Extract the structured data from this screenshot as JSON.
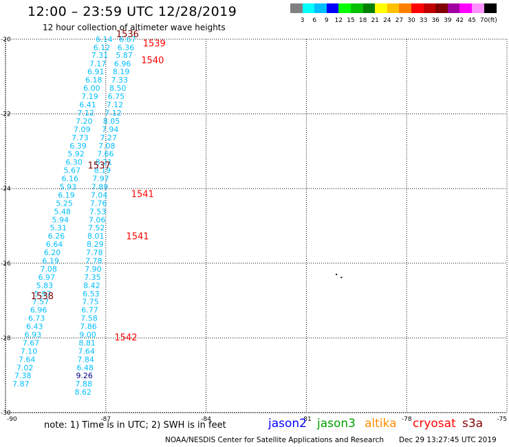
{
  "header": {
    "title": "12:00  –  23:59  UTC  12/28/2019",
    "subtitle": "12 hour collection of altimeter wave heights"
  },
  "colorbar": {
    "unit": "(ft)",
    "bins": [
      {
        "label": "3",
        "color": "#808080"
      },
      {
        "label": "6",
        "color": "#00ffff"
      },
      {
        "label": "9",
        "color": "#00bfff"
      },
      {
        "label": "12",
        "color": "#0000ff"
      },
      {
        "label": "15",
        "color": "#00ff00"
      },
      {
        "label": "18",
        "color": "#00c000"
      },
      {
        "label": "21",
        "color": "#008000"
      },
      {
        "label": "24",
        "color": "#ffff00"
      },
      {
        "label": "27",
        "color": "#ffc000"
      },
      {
        "label": "30",
        "color": "#ff8000"
      },
      {
        "label": "33",
        "color": "#ff0000"
      },
      {
        "label": "36",
        "color": "#c00000"
      },
      {
        "label": "39",
        "color": "#800000"
      },
      {
        "label": "42",
        "color": "#a000a0"
      },
      {
        "label": "45",
        "color": "#ff00ff"
      },
      {
        "label": "70",
        "color": "#ff90ff"
      },
      {
        "label": "",
        "color": "#000000"
      }
    ]
  },
  "footer": {
    "note": "note:  1) Time is in UTC;  2) SWH is in feet",
    "legend": [
      {
        "name": "jason2",
        "color": "#0000ff"
      },
      {
        "name": "jason3",
        "color": "#00a000"
      },
      {
        "name": "altika",
        "color": "#ff8c00"
      },
      {
        "name": "cryosat",
        "color": "#ff0000"
      },
      {
        "name": "s3a",
        "color": "#800000"
      }
    ],
    "credit": "NOAA/NESDIS Center for Satellite Applications and Research",
    "timestamp": "Dec 29 13:27:45 UTC 2019"
  },
  "chart_data": {
    "type": "scatter",
    "xlim": [
      -90,
      -75
    ],
    "ylim": [
      -30,
      -20
    ],
    "x_ticks": [
      -90,
      -87,
      -84,
      -81,
      -78,
      -75
    ],
    "x_tick_labels": [
      "-90",
      "-87",
      "-84",
      "-81",
      "-78",
      "-75"
    ],
    "y_ticks": [
      -20,
      -22,
      -24,
      -26,
      -28,
      -30
    ],
    "y_tick_labels": [
      "-20",
      "-22",
      "-24",
      "-26",
      "-28",
      "-30"
    ],
    "grid": true,
    "label_color": "#00bfff",
    "series": [
      {
        "points": [
          {
            "x": -87.05,
            "y": -20.0,
            "v": "6.14"
          },
          {
            "x": -87.12,
            "y": -20.22,
            "v": "6.12"
          },
          {
            "x": -87.18,
            "y": -20.42,
            "v": "7.31"
          },
          {
            "x": -87.24,
            "y": -20.65,
            "v": "7.17"
          },
          {
            "x": -87.3,
            "y": -20.87,
            "v": "6.91"
          },
          {
            "x": -87.36,
            "y": -21.09,
            "v": "6.18"
          },
          {
            "x": -87.42,
            "y": -21.31,
            "v": "6.00"
          },
          {
            "x": -87.48,
            "y": -21.53,
            "v": "7.19"
          },
          {
            "x": -87.54,
            "y": -21.75,
            "v": "6.41"
          },
          {
            "x": -87.6,
            "y": -21.97,
            "v": "7.12"
          },
          {
            "x": -87.65,
            "y": -22.19,
            "v": "7.20"
          },
          {
            "x": -87.71,
            "y": -22.41,
            "v": "7.09"
          },
          {
            "x": -87.77,
            "y": -22.63,
            "v": "7.73"
          },
          {
            "x": -87.83,
            "y": -22.85,
            "v": "6.39"
          },
          {
            "x": -87.89,
            "y": -23.07,
            "v": "5.92"
          },
          {
            "x": -87.95,
            "y": -23.29,
            "v": "6.30"
          },
          {
            "x": -88.01,
            "y": -23.51,
            "v": "5.67"
          },
          {
            "x": -88.07,
            "y": -23.73,
            "v": "6.16"
          },
          {
            "x": -88.13,
            "y": -23.95,
            "v": "5.93"
          },
          {
            "x": -88.18,
            "y": -24.17,
            "v": "6.19"
          },
          {
            "x": -88.24,
            "y": -24.39,
            "v": "5.25"
          },
          {
            "x": -88.3,
            "y": -24.61,
            "v": "5.48"
          },
          {
            "x": -88.36,
            "y": -24.83,
            "v": "5.94"
          },
          {
            "x": -88.42,
            "y": -25.05,
            "v": "5.31"
          },
          {
            "x": -88.48,
            "y": -25.27,
            "v": "6.26"
          },
          {
            "x": -88.54,
            "y": -25.49,
            "v": "6.64"
          },
          {
            "x": -88.6,
            "y": -25.71,
            "v": "6.20"
          },
          {
            "x": -88.65,
            "y": -25.93,
            "v": "6.19"
          },
          {
            "x": -88.71,
            "y": -26.15,
            "v": "7.08"
          },
          {
            "x": -88.77,
            "y": -26.37,
            "v": "6.97"
          },
          {
            "x": -88.83,
            "y": -26.59,
            "v": "5.83"
          },
          {
            "x": -88.89,
            "y": -26.81,
            "v": "5.97"
          },
          {
            "x": -88.95,
            "y": -27.03,
            "v": "7.57"
          },
          {
            "x": -89.01,
            "y": -27.25,
            "v": "6.96"
          },
          {
            "x": -89.07,
            "y": -27.47,
            "v": "6.73"
          },
          {
            "x": -89.13,
            "y": -27.69,
            "v": "6.43"
          },
          {
            "x": -89.18,
            "y": -27.91,
            "v": "6.93"
          },
          {
            "x": -89.24,
            "y": -28.13,
            "v": "7.67"
          },
          {
            "x": -89.3,
            "y": -28.35,
            "v": "7.10"
          },
          {
            "x": -89.36,
            "y": -28.57,
            "v": "7.64"
          },
          {
            "x": -89.42,
            "y": -28.79,
            "v": "7.02"
          },
          {
            "x": -89.48,
            "y": -29.01,
            "v": "7.38"
          },
          {
            "x": -89.54,
            "y": -29.23,
            "v": "7.87"
          }
        ]
      },
      {
        "points": [
          {
            "x": -86.35,
            "y": -20.0,
            "v": "6.67"
          },
          {
            "x": -86.4,
            "y": -20.22,
            "v": "6.36"
          },
          {
            "x": -86.45,
            "y": -20.42,
            "v": "5.87"
          },
          {
            "x": -86.5,
            "y": -20.65,
            "v": "6.96"
          },
          {
            "x": -86.54,
            "y": -20.87,
            "v": "8.19"
          },
          {
            "x": -86.59,
            "y": -21.09,
            "v": "7.33"
          },
          {
            "x": -86.64,
            "y": -21.31,
            "v": "8.50"
          },
          {
            "x": -86.69,
            "y": -21.53,
            "v": "6.75"
          },
          {
            "x": -86.73,
            "y": -21.75,
            "v": "7.12"
          },
          {
            "x": -86.78,
            "y": -21.97,
            "v": "7.12"
          },
          {
            "x": -86.83,
            "y": -22.19,
            "v": "8.05"
          },
          {
            "x": -86.87,
            "y": -22.41,
            "v": "7.94"
          },
          {
            "x": -86.92,
            "y": -22.63,
            "v": "7.27"
          },
          {
            "x": -86.97,
            "y": -22.85,
            "v": "7.08"
          },
          {
            "x": -87.01,
            "y": -23.07,
            "v": "7.66"
          },
          {
            "x": -87.06,
            "y": -23.29,
            "v": "8.21"
          },
          {
            "x": -87.1,
            "y": -23.51,
            "v": "8.19"
          },
          {
            "x": -87.15,
            "y": -23.73,
            "v": "7.97"
          },
          {
            "x": -87.18,
            "y": -23.95,
            "v": "7.89"
          },
          {
            "x": -87.2,
            "y": -24.17,
            "v": "7.04"
          },
          {
            "x": -87.22,
            "y": -24.39,
            "v": "7.76"
          },
          {
            "x": -87.24,
            "y": -24.61,
            "v": "7.53"
          },
          {
            "x": -87.26,
            "y": -24.83,
            "v": "7.06"
          },
          {
            "x": -87.28,
            "y": -25.05,
            "v": "7.52"
          },
          {
            "x": -87.3,
            "y": -25.27,
            "v": "8.01"
          },
          {
            "x": -87.32,
            "y": -25.49,
            "v": "8.29"
          },
          {
            "x": -87.34,
            "y": -25.71,
            "v": "7.78"
          },
          {
            "x": -87.36,
            "y": -25.93,
            "v": "7.78"
          },
          {
            "x": -87.38,
            "y": -26.15,
            "v": "7.90"
          },
          {
            "x": -87.4,
            "y": -26.37,
            "v": "7.35"
          },
          {
            "x": -87.42,
            "y": -26.59,
            "v": "8.42"
          },
          {
            "x": -87.44,
            "y": -26.81,
            "v": "6.53"
          },
          {
            "x": -87.46,
            "y": -27.03,
            "v": "7.75"
          },
          {
            "x": -87.48,
            "y": -27.25,
            "v": "6.77"
          },
          {
            "x": -87.5,
            "y": -27.47,
            "v": "7.58"
          },
          {
            "x": -87.52,
            "y": -27.69,
            "v": "7.86"
          },
          {
            "x": -87.54,
            "y": -27.91,
            "v": "9.00"
          },
          {
            "x": -87.56,
            "y": -28.13,
            "v": "8.81"
          },
          {
            "x": -87.58,
            "y": -28.35,
            "v": "7.64"
          },
          {
            "x": -87.6,
            "y": -28.57,
            "v": "7.84"
          },
          {
            "x": -87.62,
            "y": -28.79,
            "v": "6.48"
          },
          {
            "x": -87.64,
            "y": -29.01,
            "v": "9.26",
            "color": "#000080"
          },
          {
            "x": -87.66,
            "y": -29.23,
            "v": "7.88"
          },
          {
            "x": -87.68,
            "y": -29.45,
            "v": "8.62"
          }
        ]
      }
    ],
    "annotations": [
      {
        "x": -86.35,
        "y": -19.85,
        "text": "1536",
        "color": "#800000"
      },
      {
        "x": -85.55,
        "y": -20.1,
        "text": "1539",
        "color": "#ff0000"
      },
      {
        "x": -85.6,
        "y": -20.55,
        "text": "1540",
        "color": "#ff0000"
      },
      {
        "x": -87.2,
        "y": -23.37,
        "text": "1537",
        "color": "#800000"
      },
      {
        "x": -85.9,
        "y": -24.13,
        "text": "1541",
        "color": "#ff0000"
      },
      {
        "x": -86.05,
        "y": -25.27,
        "text": "1541",
        "color": "#ff0000"
      },
      {
        "x": -88.9,
        "y": -26.87,
        "text": "1538",
        "color": "#800000"
      },
      {
        "x": -86.4,
        "y": -27.97,
        "text": "1542",
        "color": "#ff0000"
      }
    ],
    "markers": [
      {
        "x": -80.1,
        "y": -26.3,
        "color": "#000000"
      },
      {
        "x": -79.95,
        "y": -26.38,
        "color": "#000000"
      }
    ]
  }
}
